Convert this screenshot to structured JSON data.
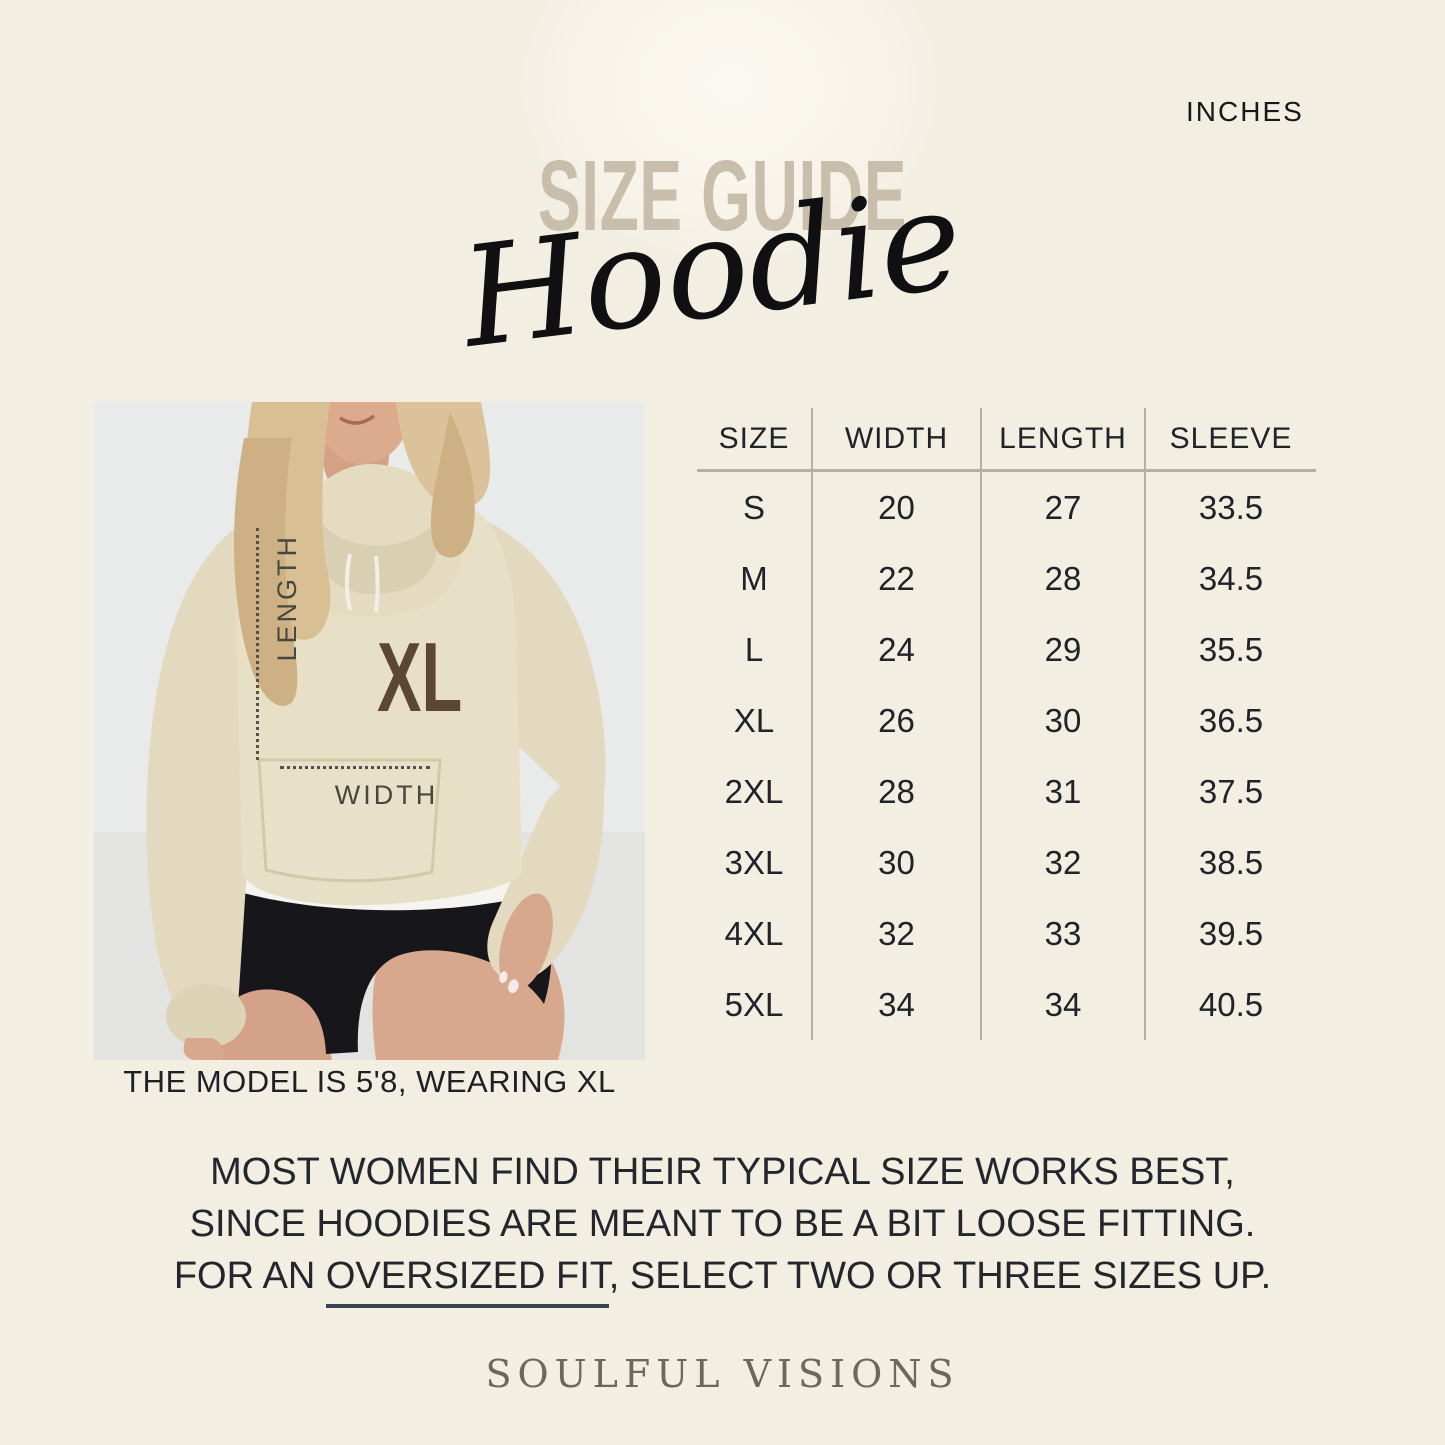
{
  "meta": {
    "units_label": "INCHES"
  },
  "header": {
    "title": "SIZE GUIDE",
    "subtitle": "Hoodie"
  },
  "photo": {
    "size_tag": "XL",
    "length_axis_label": "LENGTH",
    "width_axis_label": "WIDTH",
    "caption": "THE MODEL IS 5'8, WEARING XL"
  },
  "chart_data": {
    "type": "table",
    "title": "SIZE GUIDE Hoodie",
    "units": "INCHES",
    "columns": [
      "SIZE",
      "WIDTH",
      "LENGTH",
      "SLEEVE"
    ],
    "rows": [
      [
        "S",
        "20",
        "27",
        "33.5"
      ],
      [
        "M",
        "22",
        "28",
        "34.5"
      ],
      [
        "L",
        "24",
        "29",
        "35.5"
      ],
      [
        "XL",
        "26",
        "30",
        "36.5"
      ],
      [
        "2XL",
        "28",
        "31",
        "37.5"
      ],
      [
        "3XL",
        "30",
        "32",
        "38.5"
      ],
      [
        "4XL",
        "32",
        "33",
        "39.5"
      ],
      [
        "5XL",
        "34",
        "34",
        "40.5"
      ]
    ]
  },
  "note": {
    "line1": "MOST WOMEN FIND THEIR TYPICAL SIZE WORKS BEST,",
    "line2": "SINCE HOODIES ARE MEANT TO BE A BIT LOOSE FITTING.",
    "line3_prefix": "FOR AN ",
    "line3_underlined": "OVERSIZED FIT",
    "line3_suffix": ", SELECT TWO OR THREE SIZES UP."
  },
  "footer": {
    "brand": "SOULFUL VISIONS"
  },
  "colors": {
    "background": "#f3eee2",
    "title_tan": "#c9beac",
    "text_dark": "#1b1e24",
    "size_tag_brown": "#5b4733",
    "table_line": "#b7b0a2",
    "underline": "#3a4350",
    "brand": "#6f665c",
    "hoodie_beige": "#e7dfc6",
    "photo_background": "#e9eaea"
  }
}
